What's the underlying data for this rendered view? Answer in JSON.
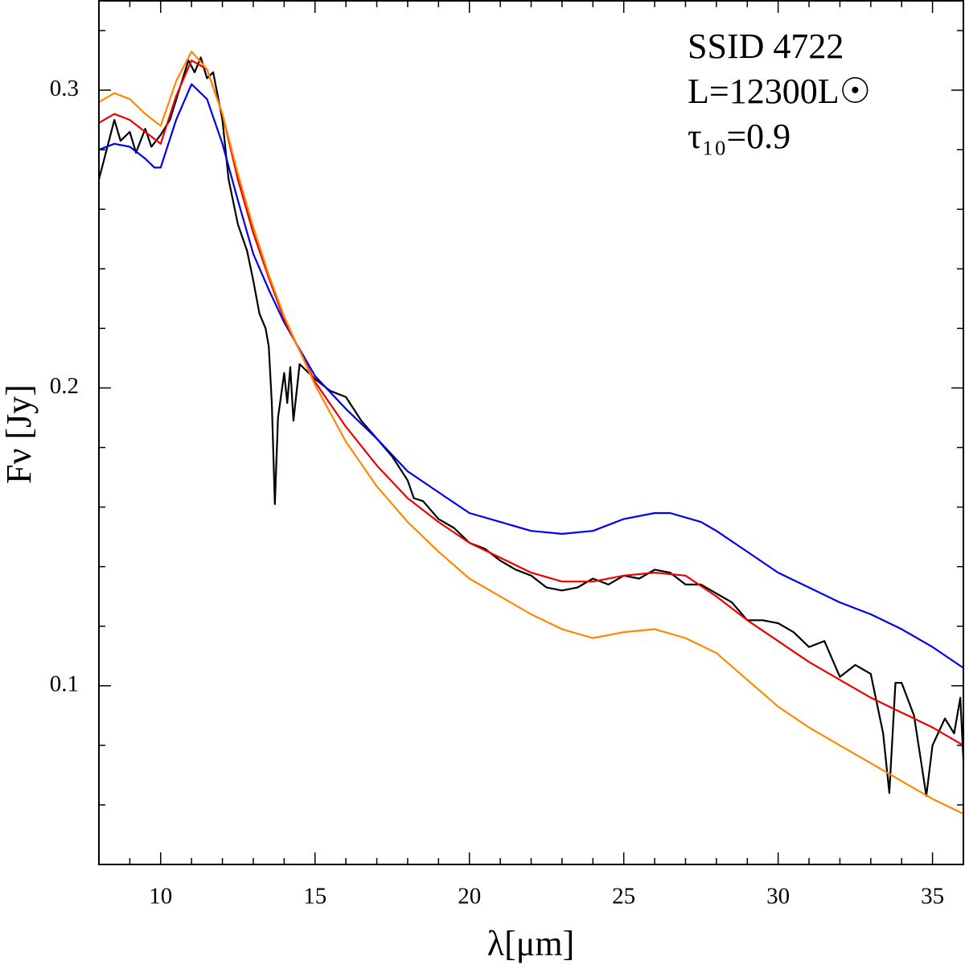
{
  "chart_data": {
    "type": "line",
    "x_label": "λ[μm]",
    "y_label": "Fν [Jy]",
    "annotations": [
      "SSID 4722",
      "L=12300L☉",
      "τ₁₀=0.9"
    ],
    "xlim": [
      8,
      36
    ],
    "ylim": [
      0.04,
      0.33
    ],
    "xticks": [
      10,
      15,
      20,
      25,
      30,
      35
    ],
    "yticks": [
      0.1,
      0.2,
      0.3
    ],
    "x_minor_ticks": [
      8,
      9,
      11,
      12,
      13,
      14,
      16,
      17,
      18,
      19,
      21,
      22,
      23,
      24,
      26,
      27,
      28,
      29,
      31,
      32,
      33,
      34,
      36
    ],
    "y_minor_ticks": [
      0.04,
      0.06,
      0.08,
      0.12,
      0.14,
      0.16,
      0.18,
      0.22,
      0.24,
      0.26,
      0.28,
      0.32
    ],
    "series": [
      {
        "color": "#000000",
        "x": [
          8,
          8.3,
          8.5,
          8.7,
          9,
          9.2,
          9.5,
          9.7,
          10,
          10.3,
          10.6,
          10.9,
          11.1,
          11.3,
          11.5,
          11.7,
          12,
          12.2,
          12.5,
          12.8,
          13,
          13.2,
          13.4,
          13.5,
          13.6,
          13.7,
          13.8,
          14,
          14.1,
          14.2,
          14.3,
          14.5,
          15,
          15.5,
          16,
          16.5,
          17,
          17.5,
          18,
          18.2,
          18.5,
          19,
          19.5,
          20,
          20.5,
          21,
          21.5,
          22,
          22.5,
          23,
          23.5,
          24,
          24.5,
          25,
          25.5,
          26,
          26.5,
          27,
          27.5,
          28,
          28.5,
          29,
          29.5,
          30,
          30.5,
          31,
          31.5,
          32,
          32.5,
          33,
          33.2,
          33.4,
          33.6,
          33.8,
          34,
          34.4,
          34.8,
          35,
          35.4,
          35.7,
          35.9,
          36
        ],
        "values": [
          0.27,
          0.282,
          0.29,
          0.283,
          0.286,
          0.279,
          0.287,
          0.281,
          0.285,
          0.29,
          0.3,
          0.31,
          0.306,
          0.311,
          0.304,
          0.306,
          0.29,
          0.27,
          0.255,
          0.246,
          0.236,
          0.225,
          0.22,
          0.214,
          0.195,
          0.161,
          0.19,
          0.205,
          0.195,
          0.207,
          0.189,
          0.208,
          0.203,
          0.199,
          0.197,
          0.189,
          0.183,
          0.177,
          0.169,
          0.163,
          0.162,
          0.156,
          0.153,
          0.148,
          0.146,
          0.142,
          0.139,
          0.137,
          0.133,
          0.132,
          0.133,
          0.136,
          0.134,
          0.137,
          0.136,
          0.139,
          0.138,
          0.134,
          0.134,
          0.131,
          0.128,
          0.122,
          0.122,
          0.121,
          0.118,
          0.113,
          0.115,
          0.103,
          0.107,
          0.104,
          0.094,
          0.084,
          0.064,
          0.101,
          0.101,
          0.09,
          0.063,
          0.08,
          0.089,
          0.084,
          0.096,
          0.075
        ]
      },
      {
        "color": "#0000ee",
        "x": [
          8,
          8.5,
          9,
          9.5,
          9.8,
          10,
          10.5,
          11,
          11.5,
          12,
          12.5,
          13,
          13.5,
          14,
          15,
          16,
          17,
          18,
          19,
          20,
          21,
          22,
          23,
          24,
          25,
          26,
          26.5,
          27.5,
          28,
          29,
          30,
          31,
          32,
          33,
          34,
          35,
          36
        ],
        "values": [
          0.28,
          0.282,
          0.281,
          0.277,
          0.274,
          0.274,
          0.29,
          0.302,
          0.297,
          0.282,
          0.263,
          0.245,
          0.233,
          0.222,
          0.204,
          0.193,
          0.183,
          0.172,
          0.165,
          0.158,
          0.155,
          0.152,
          0.151,
          0.152,
          0.156,
          0.158,
          0.158,
          0.155,
          0.152,
          0.145,
          0.138,
          0.133,
          0.128,
          0.124,
          0.119,
          0.113,
          0.106
        ]
      },
      {
        "color": "#ee0000",
        "x": [
          8,
          8.5,
          9,
          9.5,
          10,
          10.5,
          11,
          11.5,
          12,
          12.5,
          13,
          13.5,
          14,
          15,
          16,
          17,
          18,
          19,
          20,
          21,
          22,
          23,
          24,
          25,
          26,
          27,
          28,
          29,
          30,
          31,
          32,
          33,
          34,
          35,
          36
        ],
        "values": [
          0.289,
          0.292,
          0.29,
          0.286,
          0.282,
          0.298,
          0.31,
          0.307,
          0.292,
          0.27,
          0.252,
          0.237,
          0.223,
          0.202,
          0.187,
          0.174,
          0.163,
          0.155,
          0.148,
          0.143,
          0.138,
          0.135,
          0.135,
          0.137,
          0.138,
          0.137,
          0.13,
          0.122,
          0.115,
          0.108,
          0.102,
          0.096,
          0.091,
          0.086,
          0.08
        ]
      },
      {
        "color": "#ff8800",
        "x": [
          8,
          8.5,
          9,
          9.5,
          10,
          10.5,
          11,
          11.5,
          12,
          12.5,
          13,
          13.5,
          14,
          15,
          16,
          17,
          18,
          19,
          20,
          21,
          22,
          23,
          24,
          25,
          26,
          27,
          28,
          29,
          30,
          31,
          32,
          33,
          34,
          35,
          36
        ],
        "values": [
          0.296,
          0.299,
          0.297,
          0.292,
          0.288,
          0.303,
          0.313,
          0.307,
          0.292,
          0.272,
          0.254,
          0.238,
          0.224,
          0.201,
          0.182,
          0.167,
          0.155,
          0.145,
          0.136,
          0.13,
          0.124,
          0.119,
          0.116,
          0.118,
          0.119,
          0.116,
          0.111,
          0.102,
          0.093,
          0.086,
          0.08,
          0.074,
          0.068,
          0.062,
          0.057
        ]
      }
    ]
  }
}
